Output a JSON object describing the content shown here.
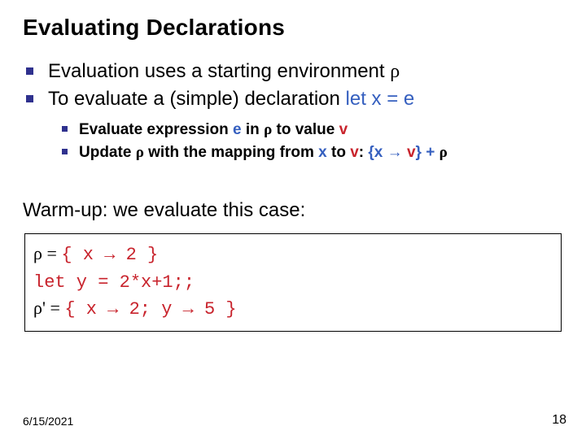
{
  "title": "Evaluating Declarations",
  "outer": [
    {
      "pre": "Evaluation uses a starting environment ",
      "rho": "ρ",
      "post": ""
    },
    {
      "pre": "To evaluate a (simple) declaration ",
      "let": "let x = e",
      "post": ""
    }
  ],
  "inner": [
    {
      "pre": "Evaluate expression ",
      "e": "e",
      "mid1": " in ",
      "rho1": "ρ",
      "mid2": " to value ",
      "v": "v",
      "post": ""
    },
    {
      "pre": "Update ",
      "rho1": "ρ",
      "mid1": " with the mapping from ",
      "x": "x",
      "mid2": " to ",
      "v": "v",
      "colon": ":  ",
      "map_open": "{x ",
      "arrow": "→",
      "map_close": " v} + ",
      "rho2": "ρ"
    }
  ],
  "warmup": "Warm-up: we evaluate this case:",
  "codebox": {
    "l1": {
      "rho": "ρ",
      "eq": " = ",
      "code": "{ x → 2 }"
    },
    "l2": {
      "code": "let y = 2*x+1;;"
    },
    "l3": {
      "rho": "ρ'",
      "eq": " = ",
      "code": "{ x → 2; y → 5 }"
    }
  },
  "footer": "6/15/2021",
  "pagenum": "18",
  "colors": {
    "bullet_square": "#2f318e",
    "blue": "#355fbf",
    "red": "#c8232c",
    "text": "#000000",
    "background": "#ffffff",
    "border": "#000000"
  },
  "fonts": {
    "body": "Arial",
    "mono": "Courier New",
    "serif": "Times New Roman"
  }
}
